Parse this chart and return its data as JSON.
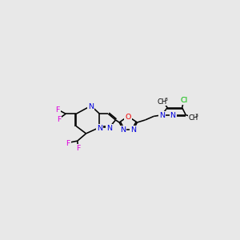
{
  "bg": "#e8e8e8",
  "bc": "#000000",
  "Nc": "#0000dd",
  "Oc": "#ee0000",
  "Fc": "#dd00dd",
  "Clc": "#00bb00",
  "lw": 1.15,
  "fs": 6.8
}
